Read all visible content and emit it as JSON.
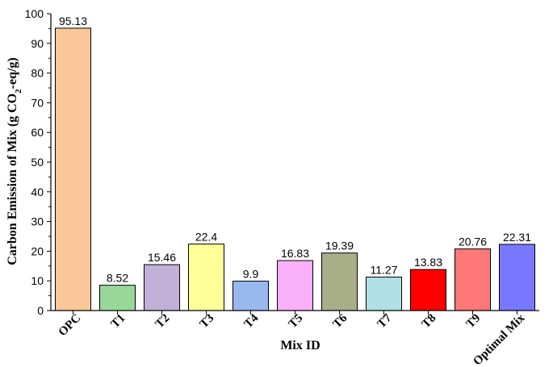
{
  "chart_data": {
    "type": "bar",
    "title": "",
    "xlabel": "Mix ID",
    "ylabel_parts": {
      "pre": "Carbon Emission of Mix (g CO",
      "sub": "2",
      "post": "-eq/g)"
    },
    "ylim": [
      0,
      100
    ],
    "yticks": [
      0,
      10,
      20,
      30,
      40,
      50,
      60,
      70,
      80,
      90,
      100
    ],
    "grid": false,
    "categories": [
      "OPC",
      "T1",
      "T2",
      "T3",
      "T4",
      "T5",
      "T6",
      "T7",
      "T8",
      "T9",
      "Optimal Mix"
    ],
    "values": [
      95.13,
      8.52,
      15.46,
      22.4,
      9.9,
      16.83,
      19.39,
      11.27,
      13.83,
      20.76,
      22.31
    ],
    "data_labels": [
      "95.13",
      "8.52",
      "15.46",
      "22.4",
      "9.9",
      "16.83",
      "19.39",
      "11.27",
      "13.83",
      "20.76",
      "22.31"
    ],
    "colors": [
      "#FAC898",
      "#98D898",
      "#C2B0D8",
      "#FFFF99",
      "#98B8EE",
      "#F8B0F8",
      "#A8AE88",
      "#B0E0E6",
      "#FF0000",
      "#FF7878",
      "#7878FF"
    ]
  }
}
